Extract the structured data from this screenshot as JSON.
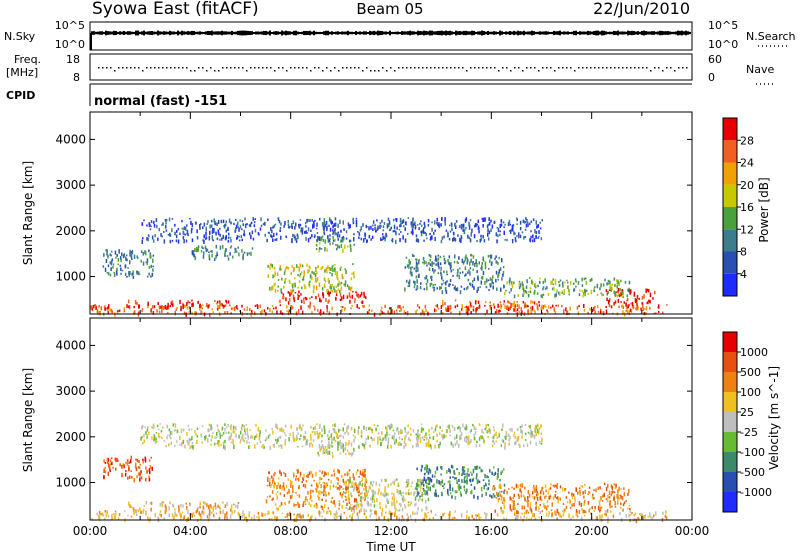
{
  "header": {
    "station": "Syowa East (fitACF)",
    "beam": "Beam 05",
    "date": "22/Jun/2010"
  },
  "strip_nsky": {
    "left_label": "N.Sky",
    "right_label": "N.Search",
    "left_ticks": [
      "10^5",
      "10^0"
    ],
    "right_ticks": [
      "10^5",
      "10^0"
    ]
  },
  "strip_freq": {
    "left_label_line1": "Freq.",
    "left_label_line2": "[MHz]",
    "right_label": "Nave",
    "left_ticks": [
      "18",
      "8"
    ],
    "right_ticks": [
      "60",
      "0"
    ]
  },
  "strip_cpid": {
    "left_label": "CPID",
    "value_text": "normal (fast) -151"
  },
  "chart_data": [
    {
      "type": "heatmap",
      "title": "",
      "xlabel": "Time UT",
      "ylabel": "Slant Range [km]",
      "xlim": [
        "00:00",
        "24:00"
      ],
      "ylim": [
        180,
        4600
      ],
      "y_ticks": [
        1000,
        2000,
        3000,
        4000
      ],
      "colorbar_label": "Power [dB]",
      "colorbar_ticks": [
        "4",
        "8",
        "12",
        "16",
        "20",
        "24",
        "28"
      ],
      "colorbar_colors": [
        "#1f2bff",
        "#2a4fb3",
        "#3c7d8d",
        "#4aa03a",
        "#c8c800",
        "#f0a000",
        "#f06020",
        "#e80000"
      ],
      "regions": [
        {
          "t0": 0.0,
          "t1": 23.0,
          "r0": 200,
          "r1": 400,
          "level": 6
        },
        {
          "t0": 1.5,
          "t1": 5.5,
          "r0": 350,
          "r1": 500,
          "level": 7
        },
        {
          "t0": 7.5,
          "t1": 11.0,
          "r0": 450,
          "r1": 700,
          "level": 7
        },
        {
          "t0": 7.0,
          "t1": 10.5,
          "r0": 700,
          "r1": 1300,
          "level": 4
        },
        {
          "t0": 14.0,
          "t1": 18.0,
          "r0": 300,
          "r1": 500,
          "level": 6
        },
        {
          "t0": 20.5,
          "t1": 22.5,
          "r0": 400,
          "r1": 800,
          "level": 7
        },
        {
          "t0": 0.5,
          "t1": 2.5,
          "r0": 1000,
          "r1": 1600,
          "level": 2
        },
        {
          "t0": 12.5,
          "t1": 16.5,
          "r0": 700,
          "r1": 1500,
          "level": 2
        },
        {
          "t0": 16.5,
          "t1": 21.5,
          "r0": 600,
          "r1": 1000,
          "level": 3
        },
        {
          "t0": 9.0,
          "t1": 10.5,
          "r0": 1600,
          "r1": 1900,
          "level": 3
        },
        {
          "t0": 4.0,
          "t1": 6.5,
          "r0": 1400,
          "r1": 1700,
          "level": 2
        },
        {
          "t0": 2.0,
          "t1": 18.0,
          "r0": 1800,
          "r1": 2300,
          "level": 1
        }
      ]
    },
    {
      "type": "heatmap",
      "title": "",
      "xlabel": "Time UT",
      "ylabel": "Slant Range [km]",
      "xlim": [
        "00:00",
        "24:00"
      ],
      "ylim": [
        180,
        4600
      ],
      "y_ticks": [
        1000,
        2000,
        3000,
        4000
      ],
      "x_tick_labels": [
        "00:00",
        "04:00",
        "08:00",
        "12:00",
        "16:00",
        "20:00",
        "00:00"
      ],
      "colorbar_label": "Velocity [m s^-1]",
      "colorbar_ticks": [
        "1000",
        "500",
        "100",
        "25",
        "-25",
        "-100",
        "-500",
        "-1000"
      ],
      "colorbar_colors": [
        "#1f2bff",
        "#2a4fb3",
        "#3c8a6a",
        "#66bb33",
        "#bebebe",
        "#f0c020",
        "#f08010",
        "#e85010",
        "#e80000"
      ],
      "regions": [
        {
          "t0": 0.0,
          "t1": 23.0,
          "r0": 200,
          "r1": 400,
          "level": 5
        },
        {
          "t0": 1.5,
          "t1": 6.0,
          "r0": 400,
          "r1": 600,
          "level": 5
        },
        {
          "t0": 7.0,
          "t1": 11.0,
          "r0": 450,
          "r1": 1300,
          "level": 6
        },
        {
          "t0": 10.0,
          "t1": 13.5,
          "r0": 400,
          "r1": 1100,
          "level": 4
        },
        {
          "t0": 13.0,
          "t1": 16.5,
          "r0": 700,
          "r1": 1400,
          "level": 2
        },
        {
          "t0": 16.0,
          "t1": 21.5,
          "r0": 400,
          "r1": 1000,
          "level": 6
        },
        {
          "t0": 0.5,
          "t1": 2.5,
          "r0": 1100,
          "r1": 1600,
          "level": 7
        },
        {
          "t0": 9.0,
          "t1": 10.5,
          "r0": 1600,
          "r1": 1900,
          "level": 4
        },
        {
          "t0": 2.0,
          "t1": 18.0,
          "r0": 1800,
          "r1": 2300,
          "level": 4
        }
      ]
    }
  ]
}
